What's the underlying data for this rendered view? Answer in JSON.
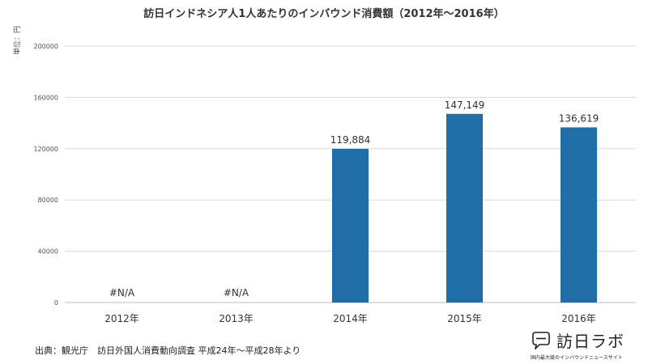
{
  "chart_data": {
    "type": "bar",
    "title": "訪日インドネシア人1人あたりのインバウンド消費額（2012年～2016年）",
    "unit_label": "単位：円",
    "categories": [
      "2012年",
      "2013年",
      "2014年",
      "2015年",
      "2016年"
    ],
    "values": [
      null,
      null,
      119884,
      147149,
      136619
    ],
    "value_labels": [
      "#N/A",
      "#N/A",
      "119,884",
      "147,149",
      "136,619"
    ],
    "ylim": [
      0,
      200000
    ],
    "yticks": [
      0,
      40000,
      80000,
      120000,
      160000,
      200000
    ],
    "ytick_labels": [
      "0",
      "40000",
      "80000",
      "120000",
      "160000",
      "200000"
    ],
    "bar_color": "#1f6ea8",
    "grid": true
  },
  "source": "出典：観光庁　訪日外国人消費動向調査 平成24年～平成28年より",
  "brand": {
    "name": "訪日ラボ",
    "tagline": "国内最大級のインバウンドニュースサイト",
    "icon": "speech-bubble-logo-icon"
  }
}
